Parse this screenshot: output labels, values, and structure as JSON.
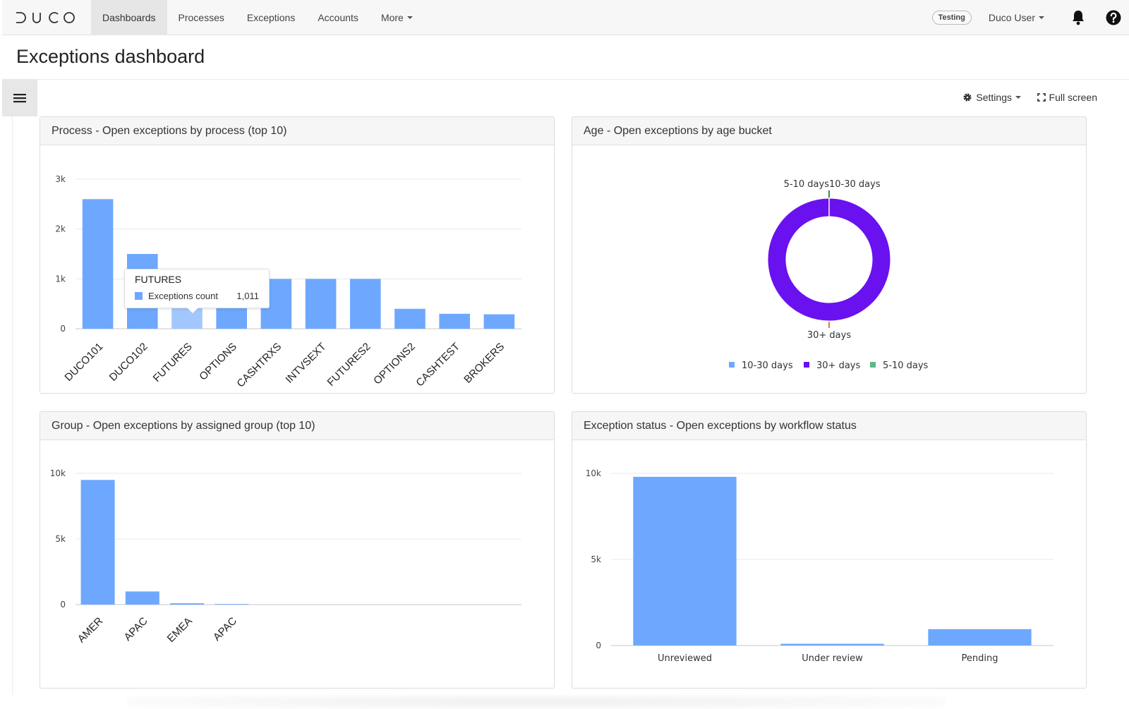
{
  "app": {
    "logo_text": "DUCO",
    "nav": [
      "Dashboards",
      "Processes",
      "Exceptions",
      "Accounts",
      "More"
    ],
    "active_nav": "Dashboards",
    "env_badge": "Testing",
    "user_label": "Duco User"
  },
  "page": {
    "title": "Exceptions dashboard"
  },
  "toolbar": {
    "settings_label": "Settings",
    "fullscreen_label": "Full screen"
  },
  "panels": {
    "process": {
      "title": "Process - Open exceptions by process (top 10)"
    },
    "age": {
      "title": "Age - Open exceptions by age bucket"
    },
    "group": {
      "title": "Group - Open exceptions by assigned group (top 10)"
    },
    "status": {
      "title": "Exception status - Open exceptions by workflow status"
    }
  },
  "tooltip": {
    "title": "FUTURES",
    "series": "Exceptions count",
    "value": "1,011"
  },
  "colors": {
    "bar": "#6ea8fe",
    "bar_hover": "#a2c7fe",
    "donut_purple": "#6a11f0",
    "donut_green": "#2e8b57",
    "donut_orange": "#e08030",
    "legend_blue": "#6ea8fe",
    "legend_purple": "#6a11f0",
    "legend_green": "#5cb88a"
  },
  "chart_data": [
    {
      "type": "bar",
      "categories": [
        "DUCO101",
        "DUCO102",
        "FUTURES",
        "OPTIONS",
        "CASHTRXS",
        "INTVSEXT",
        "FUTURES2",
        "OPTIONS2",
        "CASHTEST",
        "BROKERS"
      ],
      "values": [
        2600,
        1500,
        1011,
        1000,
        1000,
        1000,
        1000,
        400,
        300,
        290
      ],
      "yticks": [
        "0",
        "1k",
        "2k",
        "3k"
      ],
      "ylim": [
        0,
        3000
      ],
      "series_name": "Exceptions count",
      "highlighted_index": 2
    },
    {
      "type": "pie",
      "labels": [
        "10-30 days",
        "30+ days",
        "5-10 days"
      ],
      "values": [
        2,
        9996,
        2
      ],
      "callouts": [
        "5-10 days",
        "10-30 days",
        "30+ days"
      ],
      "legend": [
        "10-30 days",
        "30+ days",
        "5-10 days"
      ]
    },
    {
      "type": "bar",
      "categories": [
        "AMER",
        "APAC",
        "EMEA",
        "APAC"
      ],
      "values": [
        9500,
        1000,
        100,
        50
      ],
      "slots": 10,
      "yticks": [
        "0",
        "5k",
        "10k"
      ],
      "ylim": [
        0,
        10000
      ]
    },
    {
      "type": "bar",
      "categories": [
        "Unreviewed",
        "Under review",
        "Pending"
      ],
      "values": [
        9800,
        100,
        950
      ],
      "yticks": [
        "0",
        "5k",
        "10k"
      ],
      "ylim": [
        0,
        10000
      ]
    }
  ]
}
